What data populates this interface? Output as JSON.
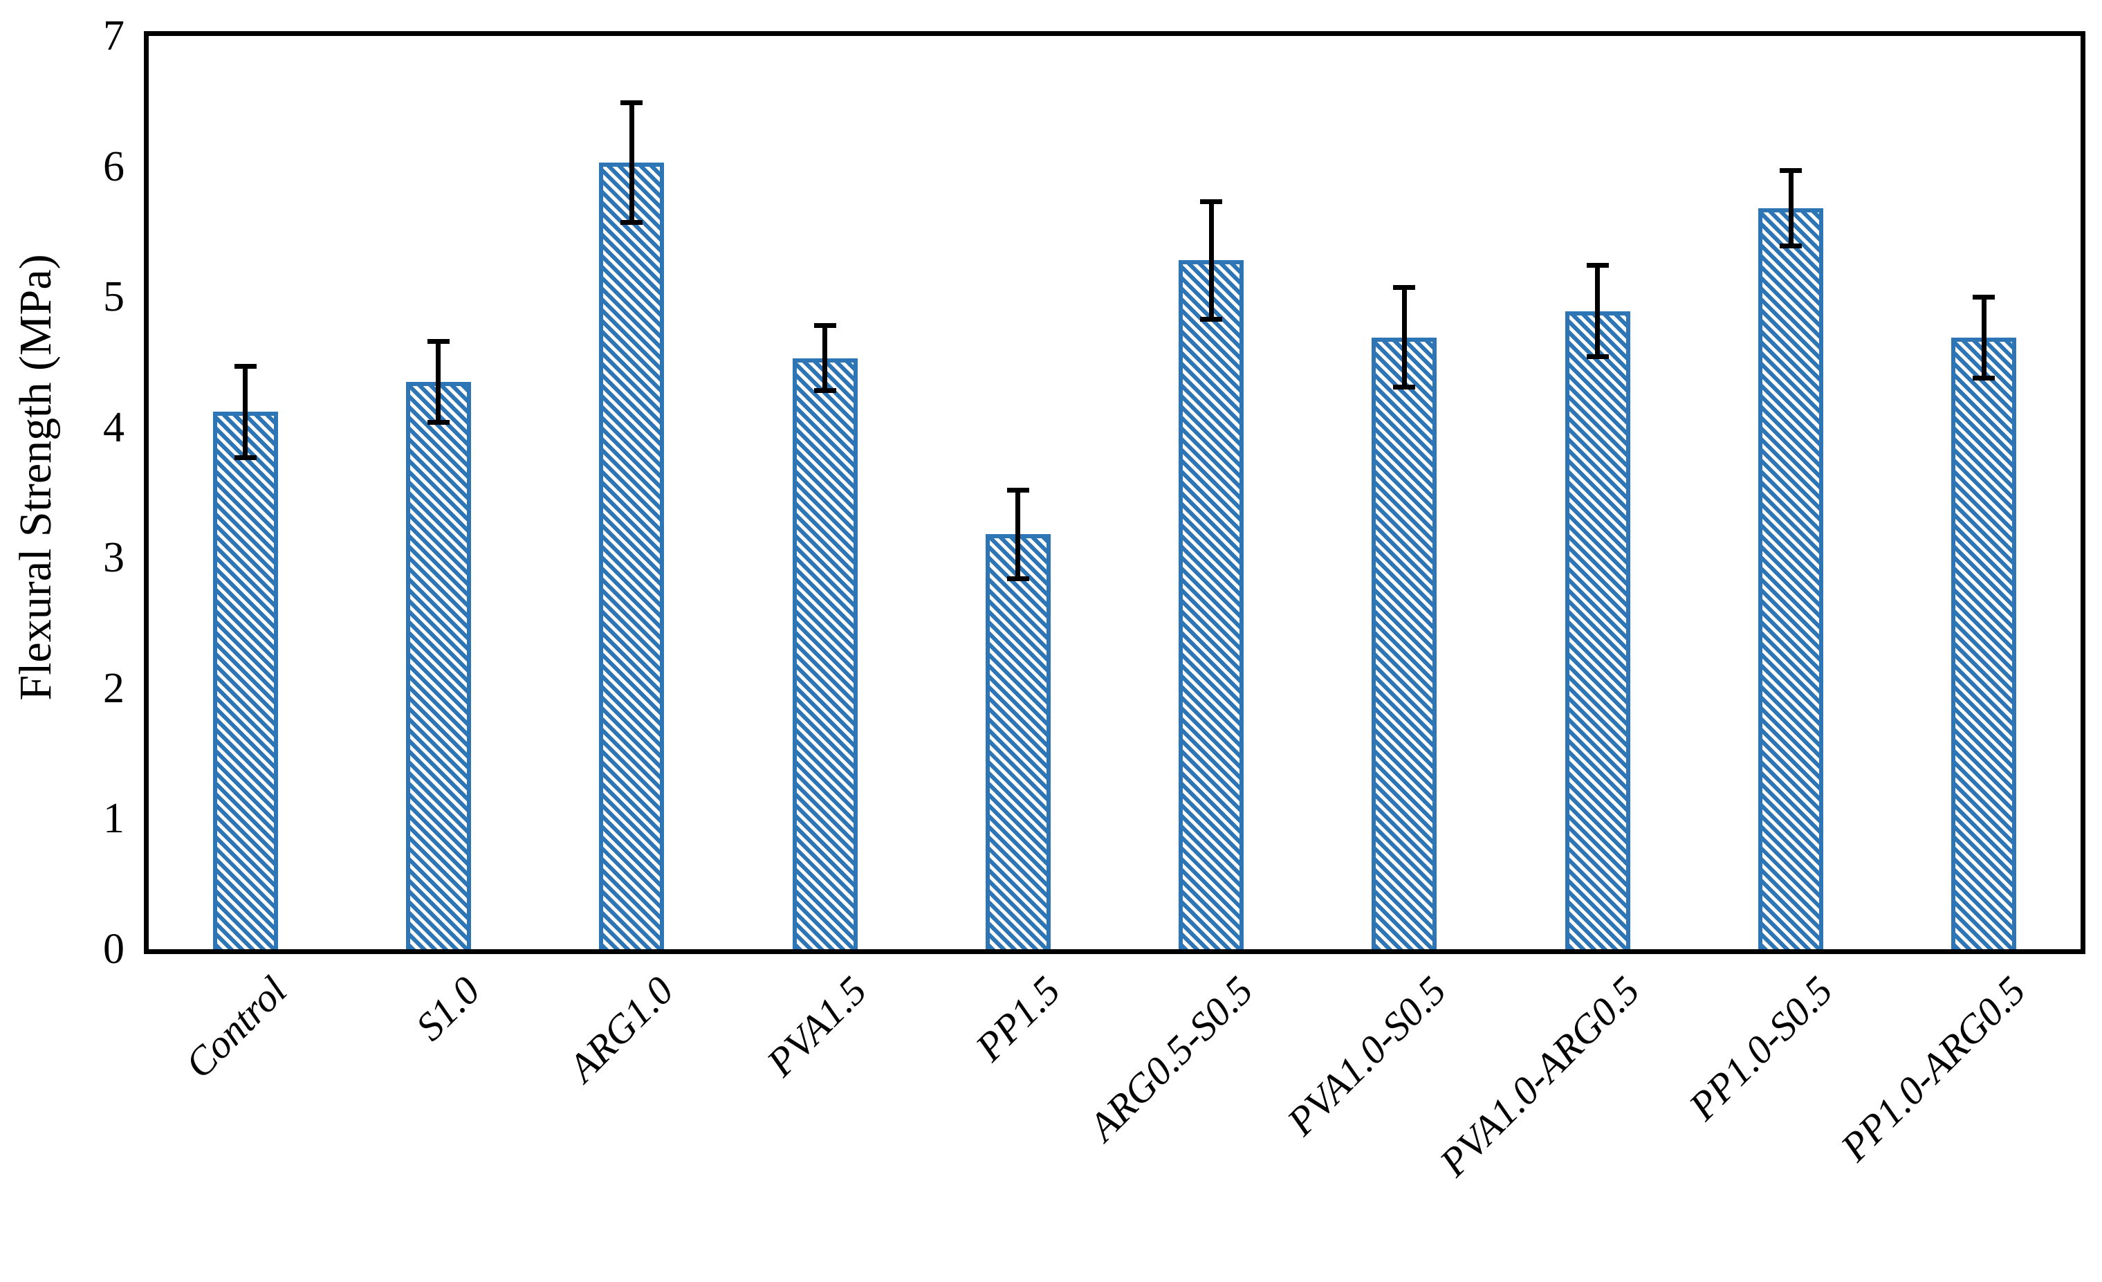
{
  "chart_data": {
    "type": "bar",
    "title": "",
    "xlabel": "",
    "ylabel": "Flexural Strength (MPa)",
    "ylim": [
      0,
      7
    ],
    "yticks": [
      0,
      1,
      2,
      3,
      4,
      5,
      6,
      7
    ],
    "grid": false,
    "legend": null,
    "categories": [
      "Control",
      "S1.0",
      "ARG1.0",
      "PVA1.5",
      "PP1.5",
      "ARG0.5-S0.5",
      "PVA1.0-S0.5",
      "PVA1.0-ARG0.5",
      "PP1.0-S0.5",
      "PP1.0-ARG0.5"
    ],
    "values": [
      4.12,
      4.35,
      6.03,
      4.53,
      3.18,
      5.28,
      4.69,
      4.89,
      5.68,
      4.69
    ],
    "errors": [
      0.35,
      0.31,
      0.46,
      0.25,
      0.34,
      0.45,
      0.38,
      0.35,
      0.29,
      0.31
    ],
    "bar_fill_color": "#2E75B6",
    "bar_border_color": "#2E75B6",
    "bar_pattern": "downward-diagonal-hatch",
    "error_bar_color": "#000000",
    "axis_color": "#000000"
  }
}
